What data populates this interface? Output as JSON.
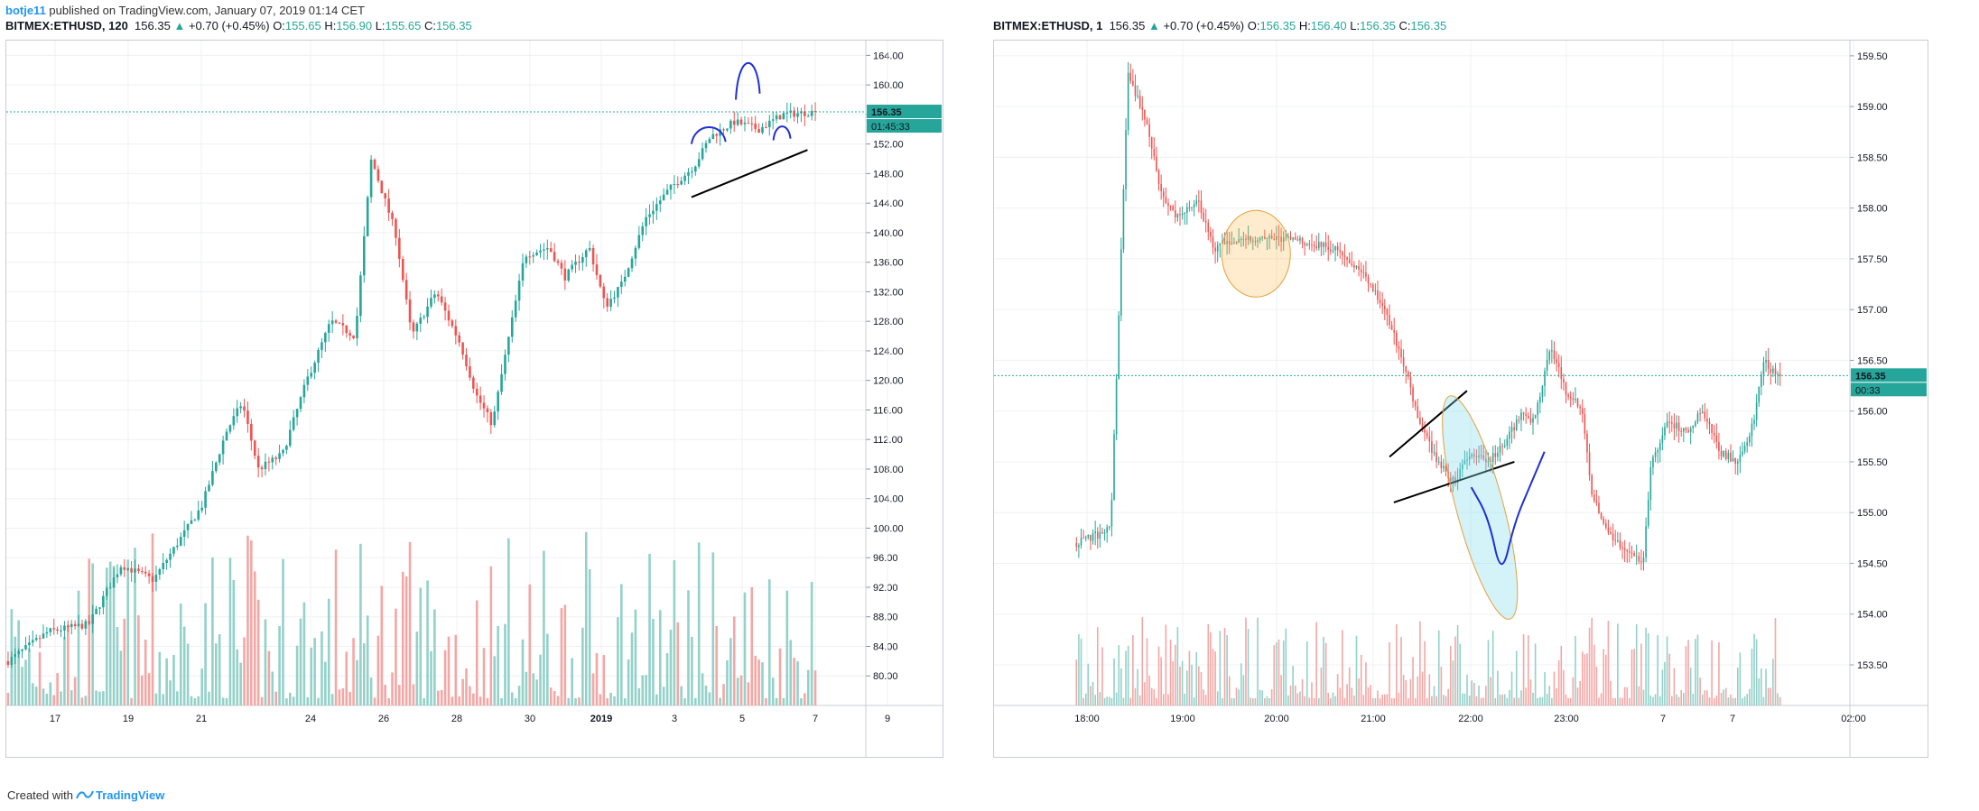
{
  "topbar": {
    "user": "botje11",
    "text": " published on TradingView.com, January 07, 2019 01:14 CET"
  },
  "footer": {
    "prefix": "Created with",
    "brand": "TradingView",
    "icon": "tradingview-logo-icon"
  },
  "colors": {
    "up": "#26a69a",
    "down": "#ef5350",
    "vol_up": "#93d1c9",
    "vol_down": "#f3a7a5",
    "price_line": "#26a69a",
    "grid": "#eef0f4"
  },
  "chart_data": [
    {
      "type": "candlestick",
      "header": {
        "symbol": "BITMEX:ETHUSD, 120",
        "last": "156.35",
        "change": "+0.70 (+0.45%)",
        "o_label": "O:",
        "o": "155.65",
        "h_label": "H:",
        "h": "156.90",
        "l_label": "L:",
        "l": "155.65",
        "c_label": "C:",
        "c": "156.35"
      },
      "price_label": "156.35",
      "countdown": "01:45:33",
      "y_ticks": [
        "164.00",
        "160.00",
        "156.00",
        "152.00",
        "148.00",
        "144.00",
        "140.00",
        "136.00",
        "132.00",
        "128.00",
        "124.00",
        "120.00",
        "116.00",
        "112.00",
        "108.00",
        "104.00",
        "100.00",
        "96.00",
        "92.00",
        "88.00",
        "84.00",
        "80.00"
      ],
      "x_ticks": [
        "17",
        "19",
        "21",
        "24",
        "26",
        "28",
        "30",
        "2019",
        "3",
        "5",
        "7",
        "9"
      ],
      "ylim": [
        76,
        166
      ],
      "last_price": 156.35,
      "close_path": [
        [
          0,
          82
        ],
        [
          5,
          86
        ],
        [
          10,
          87
        ],
        [
          14,
          95
        ],
        [
          18,
          93
        ],
        [
          21,
          98
        ],
        [
          24,
          103
        ],
        [
          27,
          113
        ],
        [
          29,
          117
        ],
        [
          31,
          108
        ],
        [
          34,
          110
        ],
        [
          37,
          120
        ],
        [
          40,
          128
        ],
        [
          43,
          126
        ],
        [
          45,
          150
        ],
        [
          48,
          140
        ],
        [
          50,
          126
        ],
        [
          53,
          132
        ],
        [
          56,
          125
        ],
        [
          58,
          118
        ],
        [
          60,
          114
        ],
        [
          61,
          120
        ],
        [
          64,
          137
        ],
        [
          67,
          138
        ],
        [
          69,
          134
        ],
        [
          72,
          138
        ],
        [
          74,
          130
        ],
        [
          76,
          133
        ],
        [
          79,
          142
        ],
        [
          82,
          146
        ],
        [
          85,
          149
        ],
        [
          87,
          153
        ],
        [
          90,
          155
        ],
        [
          93,
          154
        ],
        [
          96,
          156
        ],
        [
          100,
          156.35
        ]
      ],
      "annotations": {
        "support_line": [
          [
            3.5,
            144.8
          ],
          [
            6.9,
            151.2
          ]
        ],
        "head_and_shoulders": [
          {
            "x": [
              3.5,
              4.5
            ],
            "y": [
              152,
              154
            ]
          },
          {
            "x": [
              4.8,
              5.5
            ],
            "y": [
              158,
              163.5
            ]
          },
          {
            "x": [
              5.9,
              6.4
            ],
            "y": [
              152.5,
              154
            ]
          }
        ]
      }
    },
    {
      "type": "candlestick",
      "header": {
        "symbol": "BITMEX:ETHUSD, 1",
        "last": "156.35",
        "change": "+0.70 (+0.45%)",
        "o_label": "O:",
        "o": "156.35",
        "h_label": "H:",
        "h": "156.40",
        "l_label": "L:",
        "l": "156.35",
        "c_label": "C:",
        "c": "156.35"
      },
      "price_label": "156.35",
      "countdown": "00:33",
      "y_ticks": [
        "159.50",
        "159.00",
        "158.50",
        "158.00",
        "157.50",
        "157.00",
        "156.50",
        "156.00",
        "155.50",
        "155.00",
        "154.50",
        "154.00",
        "153.50"
      ],
      "x_ticks": [
        "18:00",
        "19:00",
        "20:00",
        "21:00",
        "22:00",
        "23:00",
        "7",
        "7",
        "02:00"
      ],
      "ylim": [
        153.1,
        159.65
      ],
      "last_price": 156.35,
      "close_path": [
        [
          0,
          154.7
        ],
        [
          3,
          154.8
        ],
        [
          4,
          154.9
        ],
        [
          6,
          159.3
        ],
        [
          8,
          158.9
        ],
        [
          10,
          158.1
        ],
        [
          12,
          157.9
        ],
        [
          14,
          158.1
        ],
        [
          16,
          157.6
        ],
        [
          20,
          157.7
        ],
        [
          25,
          157.7
        ],
        [
          30,
          157.6
        ],
        [
          33,
          157.4
        ],
        [
          36,
          157.0
        ],
        [
          38,
          156.5
        ],
        [
          40,
          155.9
        ],
        [
          42,
          155.5
        ],
        [
          44,
          155.3
        ],
        [
          46,
          155.6
        ],
        [
          48,
          155.5
        ],
        [
          50,
          155.7
        ],
        [
          52,
          156.0
        ],
        [
          53,
          155.9
        ],
        [
          54,
          156.1
        ],
        [
          55,
          156.6
        ],
        [
          56,
          156.5
        ],
        [
          57,
          156.2
        ],
        [
          59,
          156.0
        ],
        [
          60,
          155.2
        ],
        [
          62,
          154.8
        ],
        [
          64,
          154.6
        ],
        [
          66,
          154.5
        ],
        [
          67,
          155.5
        ],
        [
          69,
          155.9
        ],
        [
          71,
          155.8
        ],
        [
          73,
          156.0
        ],
        [
          75,
          155.6
        ],
        [
          77,
          155.5
        ],
        [
          79,
          155.9
        ],
        [
          80,
          156.5
        ],
        [
          81,
          156.4
        ],
        [
          82,
          156.35
        ]
      ],
      "annotations": {
        "orange_ellipse_center": [
          21,
          157.55
        ],
        "wedge_upper": [
          [
            36.5,
            155.55
          ],
          [
            45.5,
            156.2
          ]
        ],
        "wedge_lower": [
          [
            37,
            155.1
          ],
          [
            51,
            155.5
          ]
        ],
        "teal_ellipse_center": [
          47,
          155.05
        ],
        "blue_curve": [
          [
            46,
            155.25
          ],
          [
            48,
            154.95
          ],
          [
            49.5,
            154.35
          ],
          [
            51,
            154.9
          ],
          [
            53,
            155.3
          ],
          [
            54.5,
            155.6
          ]
        ]
      }
    }
  ]
}
